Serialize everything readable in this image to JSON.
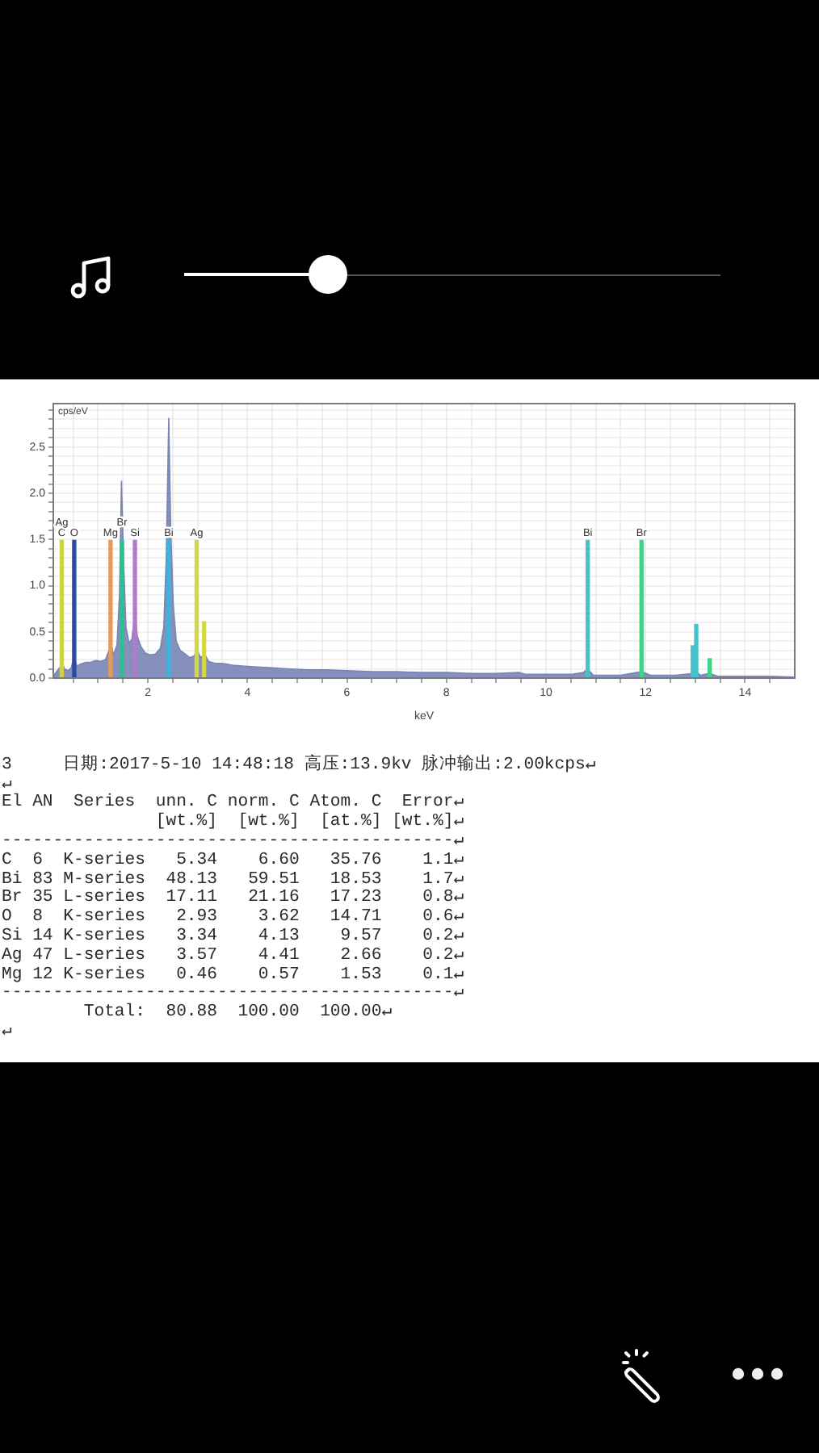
{
  "chart_data": {
    "type": "area",
    "xlabel": "keV",
    "ylabel": "cps/eV",
    "xlim": [
      0.1,
      15
    ],
    "xticks": [
      {
        "value": 0.5,
        "label": null
      },
      {
        "value": 1,
        "label": null
      },
      {
        "value": 1.5,
        "label": null
      },
      2,
      {
        "value": 2.5,
        "label": null
      },
      {
        "value": 3,
        "label": null
      },
      {
        "value": 3.5,
        "label": null
      },
      4,
      {
        "value": 4.5,
        "label": null
      },
      {
        "value": 5,
        "label": null
      },
      {
        "value": 5.5,
        "label": null
      },
      6,
      {
        "value": 6.5,
        "label": null
      },
      {
        "value": 7,
        "label": null
      },
      {
        "value": 7.5,
        "label": null
      },
      8,
      {
        "value": 8.5,
        "label": null
      },
      {
        "value": 9,
        "label": null
      },
      {
        "value": 9.5,
        "label": null
      },
      10,
      {
        "value": 10.5,
        "label": null
      },
      {
        "value": 11,
        "label": null
      },
      {
        "value": 11.5,
        "label": null
      },
      12,
      {
        "value": 12.5,
        "label": null
      },
      {
        "value": 13,
        "label": null
      },
      {
        "value": 13.5,
        "label": null
      },
      14,
      {
        "value": 14.5,
        "label": null
      }
    ],
    "ylim": [
      0,
      2.97
    ],
    "yticks": [
      {
        "value": 0,
        "label": "0.0"
      },
      {
        "value": 0.1,
        "label": null
      },
      {
        "value": 0.2,
        "label": null
      },
      {
        "value": 0.3,
        "label": null
      },
      {
        "value": 0.4,
        "label": null
      },
      0.5,
      {
        "value": 0.6,
        "label": null
      },
      {
        "value": 0.7,
        "label": null
      },
      {
        "value": 0.8,
        "label": null
      },
      {
        "value": 0.9,
        "label": null
      },
      {
        "value": 1,
        "label": "1.0"
      },
      {
        "value": 1.1,
        "label": null
      },
      {
        "value": 1.2,
        "label": null
      },
      {
        "value": 1.3,
        "label": null
      },
      {
        "value": 1.4,
        "label": null
      },
      1.5,
      {
        "value": 1.6,
        "label": null
      },
      {
        "value": 1.7,
        "label": null
      },
      {
        "value": 1.8,
        "label": null
      },
      {
        "value": 1.9,
        "label": null
      },
      {
        "value": 2,
        "label": "2.0"
      },
      {
        "value": 2.1,
        "label": null
      },
      {
        "value": 2.2,
        "label": null
      },
      {
        "value": 2.3,
        "label": null
      },
      {
        "value": 2.4,
        "label": null
      },
      2.5,
      {
        "value": 2.6,
        "label": null
      },
      {
        "value": 2.7,
        "label": null
      },
      {
        "value": 2.8,
        "label": null
      },
      {
        "value": 2.9,
        "label": null
      }
    ],
    "grid": true,
    "series": [
      {
        "color": "#7a85b6",
        "x": [
          0.1,
          0.18,
          0.24,
          0.28,
          0.32,
          0.4,
          0.46,
          0.52,
          0.57,
          0.65,
          0.75,
          0.85,
          0.95,
          1.05,
          1.15,
          1.22,
          1.26,
          1.31,
          1.38,
          1.43,
          1.47,
          1.51,
          1.56,
          1.62,
          1.68,
          1.74,
          1.79,
          1.86,
          1.95,
          2.05,
          2.15,
          2.25,
          2.32,
          2.37,
          2.42,
          2.46,
          2.51,
          2.57,
          2.65,
          2.75,
          2.85,
          2.93,
          2.99,
          3.06,
          3.14,
          3.22,
          3.35,
          3.5,
          3.7,
          3.9,
          4.2,
          4.5,
          4.8,
          5.2,
          5.6,
          6,
          6.5,
          7,
          7.5,
          8,
          8.5,
          9,
          9.45,
          9.6,
          10,
          10.5,
          10.75,
          10.84,
          10.95,
          11.5,
          11.92,
          12.1,
          12.6,
          12.95,
          13.02,
          13.1,
          13.29,
          13.45,
          14,
          14.5,
          15
        ],
        "values": [
          0.02,
          0.08,
          0.12,
          0.18,
          0.1,
          0.08,
          0.11,
          0.24,
          0.13,
          0.15,
          0.17,
          0.17,
          0.19,
          0.18,
          0.2,
          0.3,
          0.37,
          0.25,
          0.36,
          0.9,
          2.13,
          1.3,
          0.55,
          0.38,
          0.42,
          0.7,
          0.45,
          0.34,
          0.27,
          0.25,
          0.26,
          0.32,
          0.55,
          1.3,
          2.81,
          1.6,
          0.8,
          0.4,
          0.3,
          0.26,
          0.22,
          0.24,
          0.3,
          0.22,
          0.26,
          0.18,
          0.16,
          0.16,
          0.14,
          0.13,
          0.12,
          0.11,
          0.1,
          0.09,
          0.09,
          0.08,
          0.07,
          0.07,
          0.06,
          0.06,
          0.05,
          0.05,
          0.06,
          0.04,
          0.04,
          0.04,
          0.06,
          0.1,
          0.03,
          0.03,
          0.07,
          0.03,
          0.03,
          0.05,
          0.07,
          0.03,
          0.05,
          0.02,
          0.02,
          0.02,
          0.01
        ]
      },
      {
        "type": "bar",
        "x": [
          0.27,
          0.52,
          1.25,
          1.48,
          1.74,
          2.42,
          2.98,
          3.13,
          10.84,
          11.92,
          12.95,
          13.02,
          13.29
        ],
        "values": [
          1.49,
          1.49,
          1.49,
          1.49,
          1.49,
          1.49,
          1.49,
          0.61,
          1.49,
          1.49,
          0.35,
          0.58,
          0.21
        ],
        "colors": [
          "#ccd24a",
          "#2b49a6",
          "#e39a5a",
          "#2fbf8f",
          "#b27ac8",
          "#3db4dc",
          "#d4d74a",
          "#d4d74a",
          "#45c3cc",
          "#3fd38a",
          "#45c3cc",
          "#45c3cc",
          "#3fd38a"
        ]
      }
    ],
    "annotations": [
      {
        "text": "C",
        "x": 0.27,
        "y": 1.49
      },
      {
        "text": "Ag",
        "x": 0.27,
        "y": 1.49
      },
      {
        "text": "O",
        "x": 0.52,
        "y": 1.49
      },
      {
        "text": "Mg",
        "x": 1.25,
        "y": 1.49
      },
      {
        "text": "Br",
        "x": 1.48,
        "y": 1.49
      },
      {
        "text": "Si",
        "x": 1.74,
        "y": 1.49
      },
      {
        "text": "Bi",
        "x": 2.42,
        "y": 1.49
      },
      {
        "text": "Ag",
        "x": 2.98,
        "y": 1.49
      },
      {
        "text": "Bi",
        "x": 10.84,
        "y": 1.49
      },
      {
        "text": "Br",
        "x": 11.92,
        "y": 1.49
      },
      "3     日期:2017-5-10 14:48:18 高压:13.9kv 脉冲输出:2.00kcps↵",
      "↵",
      "El AN  Series  unn. C norm. C Atom. C  Error↵",
      "               [wt.%]  [wt.%]  [at.%] [wt.%]↵",
      "--------------------------------------------↵",
      "C  6  K-series   5.34    6.60   35.76    1.1↵",
      "Bi 83 M-series  48.13   59.51   18.53    1.7↵",
      "Br 35 L-series  17.11   21.16   17.23    0.8↵",
      "O  8  K-series   2.93    3.62   14.71    0.6↵",
      "Si 14 K-series   3.34    4.13    9.57    0.2↵",
      "Ag 47 L-series   3.57    4.41    2.66    0.2↵",
      "Mg 12 K-series   0.46    0.57    1.53    0.1↵",
      "--------------------------------------------↵",
      "        Total:  80.88  100.00  100.00↵",
      "↵"
    ]
  }
}
